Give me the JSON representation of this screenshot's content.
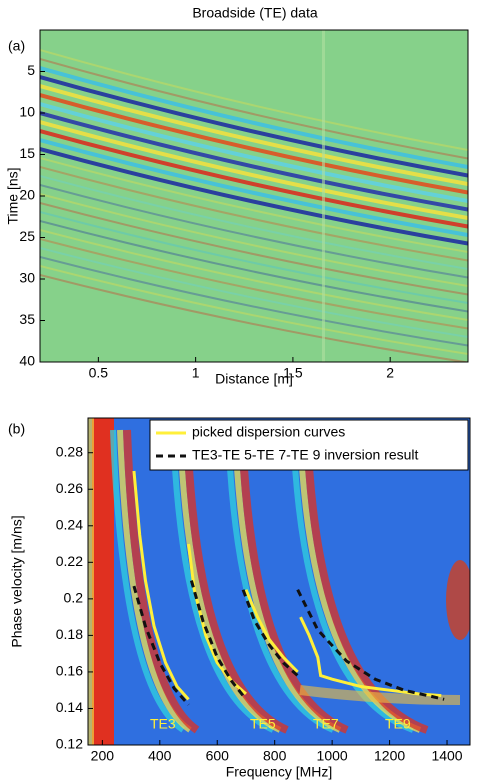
{
  "chart_data": [
    {
      "type": "heatmap",
      "title": "Broadside (TE) data",
      "panel_label": "(a)",
      "x_label": "Distance [m]",
      "y_label": "Time [ns]",
      "xlim": [
        0.2,
        2.4
      ],
      "xticks": [
        0.5,
        1,
        1.5,
        2
      ],
      "ylim": [
        0,
        40
      ],
      "yticks": [
        5,
        10,
        15,
        20,
        25,
        30,
        35,
        40
      ],
      "y_reversed": true
    },
    {
      "type": "line",
      "panel_label": "(b)",
      "x_label": "Frequency [MHz]",
      "y_label": "Phase velocity [m/ns]",
      "xlim": [
        150,
        1480
      ],
      "xticks": [
        200,
        400,
        600,
        800,
        1000,
        1200,
        1400
      ],
      "ylim": [
        0.12,
        0.299
      ],
      "yticks": [
        0.12,
        0.14,
        0.16,
        0.18,
        0.2,
        0.22,
        0.24,
        0.26,
        0.28
      ],
      "legend": "upper right",
      "series": [
        {
          "name": "picked dispersion curves",
          "color": "#ffef3a",
          "dash": false,
          "x": [
            310,
            330,
            350,
            380,
            420,
            460,
            500,
            null,
            500,
            520,
            560,
            600,
            650,
            700,
            null,
            700,
            740,
            780,
            830,
            880,
            null,
            890,
            920,
            950,
            960,
            1000,
            1100,
            1200,
            1300,
            1380
          ],
          "values": [
            0.27,
            0.235,
            0.21,
            0.185,
            0.165,
            0.152,
            0.145,
            null,
            0.23,
            0.205,
            0.18,
            0.165,
            0.155,
            0.148,
            null,
            0.205,
            0.19,
            0.178,
            0.168,
            0.16,
            null,
            0.19,
            0.18,
            0.168,
            0.158,
            0.156,
            0.152,
            0.15,
            0.148,
            0.147
          ]
        },
        {
          "name": "TE3-TE 5-TE 7-TE 9 inversion result",
          "color": "#111111",
          "dash": true,
          "x": [
            310,
            350,
            400,
            450,
            500,
            null,
            510,
            550,
            600,
            650,
            700,
            null,
            690,
            730,
            780,
            830,
            880,
            null,
            880,
            950,
            1050,
            1150,
            1250,
            1390
          ],
          "values": [
            0.207,
            0.185,
            0.165,
            0.151,
            0.142,
            null,
            0.21,
            0.188,
            0.168,
            0.155,
            0.145,
            null,
            0.205,
            0.188,
            0.175,
            0.165,
            0.158,
            null,
            0.205,
            0.183,
            0.166,
            0.156,
            0.15,
            0.145
          ]
        }
      ],
      "annotations": [
        "TE3",
        "TE5",
        "TE7",
        "TE9"
      ]
    }
  ]
}
